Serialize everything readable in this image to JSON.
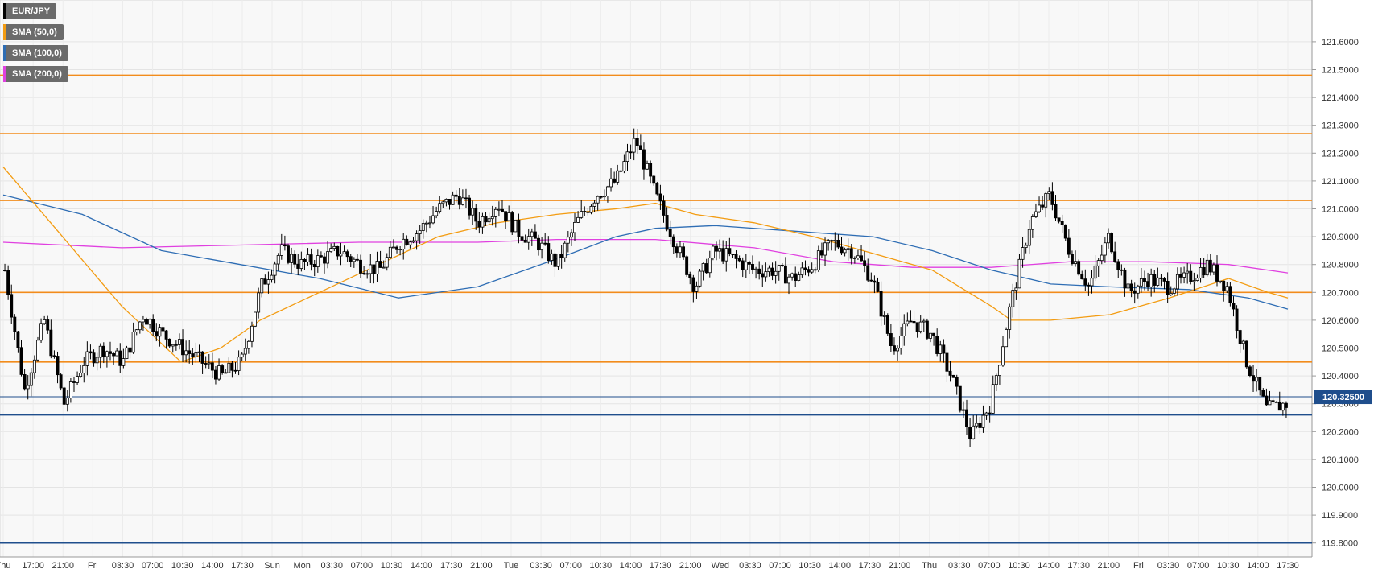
{
  "chart_data": {
    "type": "candlestick",
    "symbol": "EUR/JPY",
    "ylim": [
      119.75,
      121.75
    ],
    "y_ticks": [
      "121.6000",
      "121.5000",
      "121.4000",
      "121.3000",
      "121.2000",
      "121.1000",
      "121.0000",
      "120.9000",
      "120.8000",
      "120.7000",
      "120.6000",
      "120.5000",
      "120.4000",
      "120.3000",
      "120.2000",
      "120.1000",
      "120.0000",
      "119.9000",
      "119.8000"
    ],
    "y_tick_values": [
      121.6,
      121.5,
      121.4,
      121.3,
      121.2,
      121.1,
      121.0,
      120.9,
      120.8,
      120.7,
      120.6,
      120.5,
      120.4,
      120.3,
      120.2,
      120.1,
      120.0,
      119.9,
      119.8
    ],
    "x_ticks": [
      "Thu",
      "17:00",
      "21:00",
      "Fri",
      "03:30",
      "07:00",
      "10:30",
      "14:00",
      "17:30",
      "Sun",
      "Mon",
      "03:30",
      "07:00",
      "10:30",
      "14:00",
      "17:30",
      "21:00",
      "Tue",
      "03:30",
      "07:00",
      "10:30",
      "14:00",
      "17:30",
      "21:00",
      "Wed",
      "03:30",
      "07:00",
      "10:30",
      "14:00",
      "17:30",
      "21:00",
      "Thu",
      "03:30",
      "07:00",
      "10:30",
      "14:00",
      "17:30",
      "21:00",
      "Fri",
      "03:30",
      "07:00",
      "10:30",
      "14:00",
      "17:30"
    ],
    "legend": [
      {
        "label": "EUR/JPY",
        "color": "#000000"
      },
      {
        "label": "SMA (50,0)",
        "color": "#f39c12"
      },
      {
        "label": "SMA (100,0)",
        "color": "#2e6db4"
      },
      {
        "label": "SMA (200,0)",
        "color": "#e040e0"
      }
    ],
    "current_price": "120.32500",
    "current_price_value": 120.325,
    "horizontal_levels": [
      {
        "value": 121.48,
        "color": "#f28c1c"
      },
      {
        "value": 121.27,
        "color": "#f28c1c"
      },
      {
        "value": 121.03,
        "color": "#f28c1c"
      },
      {
        "value": 120.7,
        "color": "#f28c1c"
      },
      {
        "value": 120.45,
        "color": "#f28c1c"
      },
      {
        "value": 120.26,
        "color": "#1f4e8c"
      },
      {
        "value": 119.8,
        "color": "#1f4e8c"
      }
    ],
    "price_path": [
      [
        0,
        120.78
      ],
      [
        1,
        120.35
      ],
      [
        2,
        120.6
      ],
      [
        3,
        120.3
      ],
      [
        4,
        120.45
      ],
      [
        5,
        120.5
      ],
      [
        6,
        120.45
      ],
      [
        7,
        120.62
      ],
      [
        8,
        120.55
      ],
      [
        9,
        120.5
      ],
      [
        10,
        120.45
      ],
      [
        11,
        120.4
      ],
      [
        12,
        120.45
      ],
      [
        13,
        120.72
      ],
      [
        14,
        120.85
      ],
      [
        15,
        120.8
      ],
      [
        16,
        120.82
      ],
      [
        17,
        120.85
      ],
      [
        18,
        120.8
      ],
      [
        19,
        120.78
      ],
      [
        20,
        120.88
      ],
      [
        21,
        120.92
      ],
      [
        22,
        121.0
      ],
      [
        23,
        121.05
      ],
      [
        24,
        120.95
      ],
      [
        25,
        121.02
      ],
      [
        26,
        120.92
      ],
      [
        27,
        120.88
      ],
      [
        28,
        120.8
      ],
      [
        29,
        120.95
      ],
      [
        30,
        121.05
      ],
      [
        31,
        121.1
      ],
      [
        32,
        121.25
      ],
      [
        33,
        121.05
      ],
      [
        34,
        120.88
      ],
      [
        35,
        120.72
      ],
      [
        36,
        120.85
      ],
      [
        37,
        120.82
      ],
      [
        38,
        120.78
      ],
      [
        39,
        120.78
      ],
      [
        40,
        120.75
      ],
      [
        41,
        120.8
      ],
      [
        42,
        120.88
      ],
      [
        43,
        120.85
      ],
      [
        44,
        120.75
      ],
      [
        45,
        120.5
      ],
      [
        46,
        120.6
      ],
      [
        47,
        120.55
      ],
      [
        48,
        120.4
      ],
      [
        49,
        120.18
      ],
      [
        50,
        120.3
      ],
      [
        51,
        120.65
      ],
      [
        52,
        120.95
      ],
      [
        53,
        121.05
      ],
      [
        54,
        120.85
      ],
      [
        55,
        120.72
      ],
      [
        56,
        120.9
      ],
      [
        57,
        120.7
      ],
      [
        58,
        120.75
      ],
      [
        59,
        120.72
      ],
      [
        60,
        120.75
      ],
      [
        61,
        120.8
      ],
      [
        62,
        120.72
      ],
      [
        63,
        120.45
      ],
      [
        64,
        120.28
      ],
      [
        65,
        120.3
      ]
    ],
    "sma50": [
      [
        0,
        121.15
      ],
      [
        3,
        120.9
      ],
      [
        6,
        120.65
      ],
      [
        9,
        120.45
      ],
      [
        11,
        120.5
      ],
      [
        13,
        120.6
      ],
      [
        16,
        120.7
      ],
      [
        19,
        120.8
      ],
      [
        22,
        120.9
      ],
      [
        25,
        120.95
      ],
      [
        28,
        120.98
      ],
      [
        31,
        121.0
      ],
      [
        33,
        121.02
      ],
      [
        35,
        120.98
      ],
      [
        38,
        120.95
      ],
      [
        41,
        120.9
      ],
      [
        44,
        120.84
      ],
      [
        47,
        120.78
      ],
      [
        50,
        120.65
      ],
      [
        51,
        120.6
      ],
      [
        53,
        120.6
      ],
      [
        56,
        120.62
      ],
      [
        59,
        120.68
      ],
      [
        62,
        120.75
      ],
      [
        64,
        120.7
      ],
      [
        65,
        120.68
      ]
    ],
    "sma100": [
      [
        0,
        121.05
      ],
      [
        4,
        120.98
      ],
      [
        8,
        120.85
      ],
      [
        12,
        120.8
      ],
      [
        16,
        120.75
      ],
      [
        20,
        120.68
      ],
      [
        24,
        120.72
      ],
      [
        28,
        120.82
      ],
      [
        31,
        120.9
      ],
      [
        33,
        120.93
      ],
      [
        36,
        120.94
      ],
      [
        40,
        120.92
      ],
      [
        44,
        120.9
      ],
      [
        47,
        120.85
      ],
      [
        50,
        120.78
      ],
      [
        53,
        120.73
      ],
      [
        56,
        120.72
      ],
      [
        60,
        120.71
      ],
      [
        63,
        120.68
      ],
      [
        65,
        120.64
      ]
    ],
    "sma200": [
      [
        0,
        120.88
      ],
      [
        6,
        120.86
      ],
      [
        12,
        120.87
      ],
      [
        18,
        120.88
      ],
      [
        24,
        120.88
      ],
      [
        28,
        120.89
      ],
      [
        33,
        120.89
      ],
      [
        38,
        120.86
      ],
      [
        42,
        120.81
      ],
      [
        46,
        120.79
      ],
      [
        50,
        120.79
      ],
      [
        54,
        120.81
      ],
      [
        58,
        120.81
      ],
      [
        62,
        120.8
      ],
      [
        65,
        120.77
      ]
    ]
  }
}
